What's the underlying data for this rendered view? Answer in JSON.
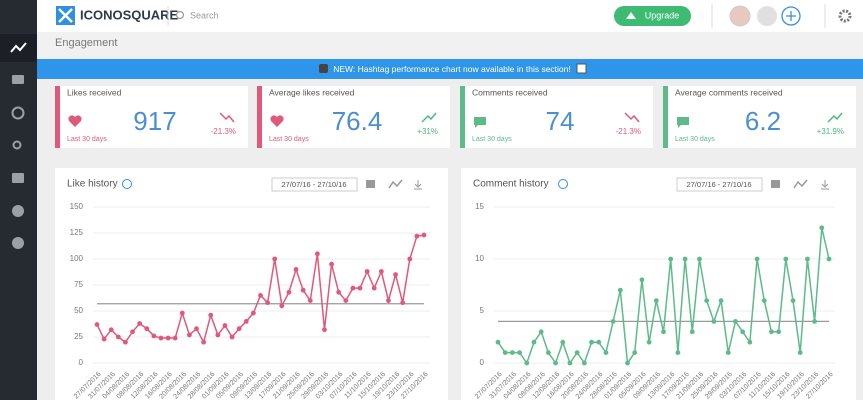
{
  "app": {
    "logo": "ICONOSQUARE",
    "search": "Search",
    "upgrade": "Upgrade",
    "section": "Engagement",
    "banner": "NEW: Hashtag performance chart now available in this section!"
  },
  "cards": [
    {
      "title": "Likes received",
      "value": 917,
      "period": "Last 30 days",
      "change": "-21.3%",
      "color": "#e0587a"
    },
    {
      "title": "Average likes received",
      "value": 76.4,
      "period": "Last 30 days",
      "change": "+31%",
      "color": "#e0587a"
    },
    {
      "title": "Comments received",
      "value": 74,
      "period": "Last 30 days",
      "change": "-21.3%",
      "color": "#5dbb8a"
    },
    {
      "title": "Average comments received",
      "value": 6.2,
      "period": "Last 30 days",
      "change": "+31.9%",
      "color": "#5dbb8a"
    }
  ],
  "chart_data": [
    {
      "type": "line",
      "title": "Like history",
      "date_range": "27/07/16 - 27/10/16",
      "color": "#e0587a",
      "grid": true,
      "categories": [
        "27/07/2016",
        null,
        "31/07/2016",
        null,
        "04/08/2016",
        null,
        "08/08/2016",
        null,
        "12/08/2016",
        null,
        "16/08/2016",
        null,
        "20/08/2016",
        null,
        "24/08/2016",
        null,
        "28/08/2016",
        null,
        "01/09/2016",
        null,
        "05/09/2016",
        null,
        "09/09/2016",
        null,
        "13/09/2016",
        null,
        "17/09/2016",
        null,
        "21/09/2016",
        null,
        "25/09/2016",
        null,
        "29/09/2016",
        null,
        "03/10/2016",
        null,
        "07/10/2016",
        null,
        "11/10/2016",
        null,
        "15/10/2016",
        null,
        "19/10/2016",
        null,
        "23/10/2016",
        null,
        "27/10/2016"
      ],
      "values": [
        37,
        23,
        32,
        25,
        20,
        30,
        38,
        33,
        26,
        24,
        24,
        24,
        48,
        27,
        33,
        20,
        46,
        27,
        36,
        25,
        33,
        40,
        48,
        65,
        58,
        100,
        55,
        68,
        90,
        70,
        60,
        105,
        32,
        95,
        68,
        60,
        72,
        72,
        88,
        72,
        88,
        60,
        85,
        58,
        100,
        122,
        123
      ],
      "reference_line": 57,
      "ylim": [
        0,
        150
      ],
      "yticks": [
        0,
        25,
        50,
        75,
        100,
        125,
        150
      ]
    },
    {
      "type": "line",
      "title": "Comment history",
      "date_range": "27/07/16 - 27/10/16",
      "color": "#5dbb8a",
      "grid": true,
      "categories": [
        "27/07/2016",
        null,
        "31/07/2016",
        null,
        "04/08/2016",
        null,
        "08/08/2016",
        null,
        "12/08/2016",
        null,
        "16/08/2016",
        null,
        "20/08/2016",
        null,
        "24/08/2016",
        null,
        "28/08/2016",
        null,
        "01/09/2016",
        null,
        "05/09/2016",
        null,
        "09/09/2016",
        null,
        "13/09/2016",
        null,
        "17/09/2016",
        null,
        "21/09/2016",
        null,
        "25/09/2016",
        null,
        "29/09/2016",
        null,
        "03/10/2016",
        null,
        "07/10/2016",
        null,
        "11/10/2016",
        null,
        "15/10/2016",
        null,
        "19/10/2016",
        null,
        "23/10/2016",
        null,
        "27/10/2016"
      ],
      "values": [
        2,
        1,
        1,
        1,
        0,
        2,
        3,
        1,
        0,
        2,
        0,
        1,
        0,
        2,
        2,
        1,
        4,
        7,
        0,
        1,
        8,
        2,
        6,
        3,
        10,
        1,
        10,
        3,
        10,
        6,
        4,
        6,
        1,
        4,
        3,
        2,
        10,
        6,
        3,
        3,
        10,
        6,
        1,
        10,
        4,
        13,
        10
      ],
      "reference_line": 4,
      "ylim": [
        0,
        15
      ],
      "yticks": [
        0,
        5,
        10,
        15
      ]
    }
  ]
}
